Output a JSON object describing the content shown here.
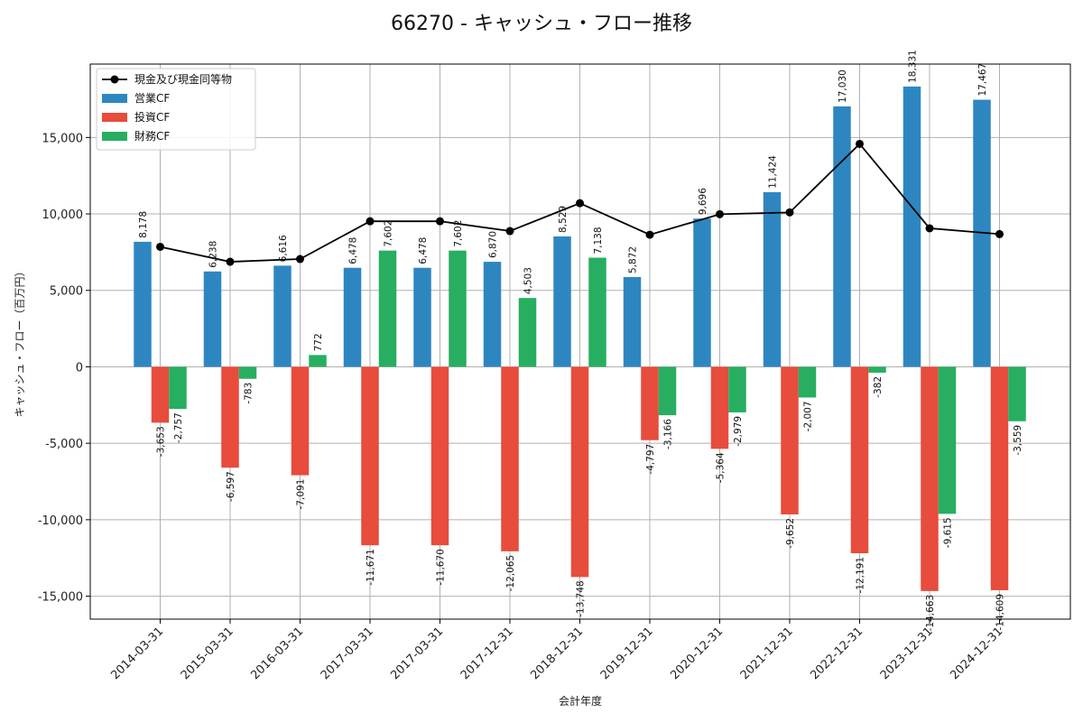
{
  "chart_data": {
    "type": "bar",
    "title": "66270 - キャッシュ・フロー推移",
    "xlabel": "会計年度",
    "ylabel": "キャッシュ・フロー（百万円）",
    "ylim": [
      -16500,
      19800
    ],
    "yticks": [
      -15000,
      -10000,
      -5000,
      0,
      5000,
      10000,
      15000
    ],
    "ytick_labels": [
      "-15,000",
      "-10,000",
      "-5,000",
      "0",
      "5,000",
      "10,000",
      "15,000"
    ],
    "grid": true,
    "legend_position": "top-left",
    "categories": [
      "2014-03-31",
      "2015-03-31",
      "2016-03-31",
      "2017-03-31",
      "2017-03-31",
      "2017-12-31",
      "2018-12-31",
      "2019-12-31",
      "2020-12-31",
      "2021-12-31",
      "2022-12-31",
      "2023-12-31",
      "2024-12-31"
    ],
    "series": [
      {
        "name": "営業CF",
        "kind": "bar",
        "color": "#2e86c1",
        "values": [
          8178,
          6238,
          6616,
          6478,
          6478,
          6870,
          8529,
          5872,
          9696,
          11424,
          17030,
          18331,
          17467
        ],
        "labels": [
          "8,178",
          "6,238",
          "6,616",
          "6,478",
          "6,478",
          "6,870",
          "8,529",
          "5,872",
          "9,696",
          "11,424",
          "17,030",
          "18,331",
          "17,467"
        ]
      },
      {
        "name": "投資CF",
        "kind": "bar",
        "color": "#e74c3c",
        "values": [
          -3653,
          -6597,
          -7091,
          -11671,
          -11670,
          -12065,
          -13748,
          -4797,
          -5364,
          -9652,
          -12191,
          -14663,
          -14609
        ],
        "labels": [
          "-3,653",
          "-6,597",
          "-7,091",
          "-11,671",
          "-11,670",
          "-12,065",
          "-13,748",
          "-4,797",
          "-5,364",
          "-9,652",
          "-12,191",
          "-14,663",
          "-14,609"
        ]
      },
      {
        "name": "財務CF",
        "kind": "bar",
        "color": "#27ae60",
        "values": [
          -2757,
          -783,
          772,
          7602,
          7602,
          4503,
          7138,
          -3166,
          -2979,
          -2007,
          -382,
          -9615,
          -3559
        ],
        "labels": [
          "-2,757",
          "-783",
          "772",
          "7,602",
          "7,602",
          "4,503",
          "7,138",
          "-3,166",
          "-2,979",
          "-2,007",
          "-382",
          "-9,615",
          "-3,559"
        ]
      },
      {
        "name": "現金及び現金同等物",
        "kind": "line",
        "color": "#000000",
        "values": [
          7850,
          6870,
          7050,
          9520,
          9520,
          8880,
          10700,
          8640,
          9980,
          10100,
          14580,
          9060,
          8680
        ]
      }
    ]
  }
}
